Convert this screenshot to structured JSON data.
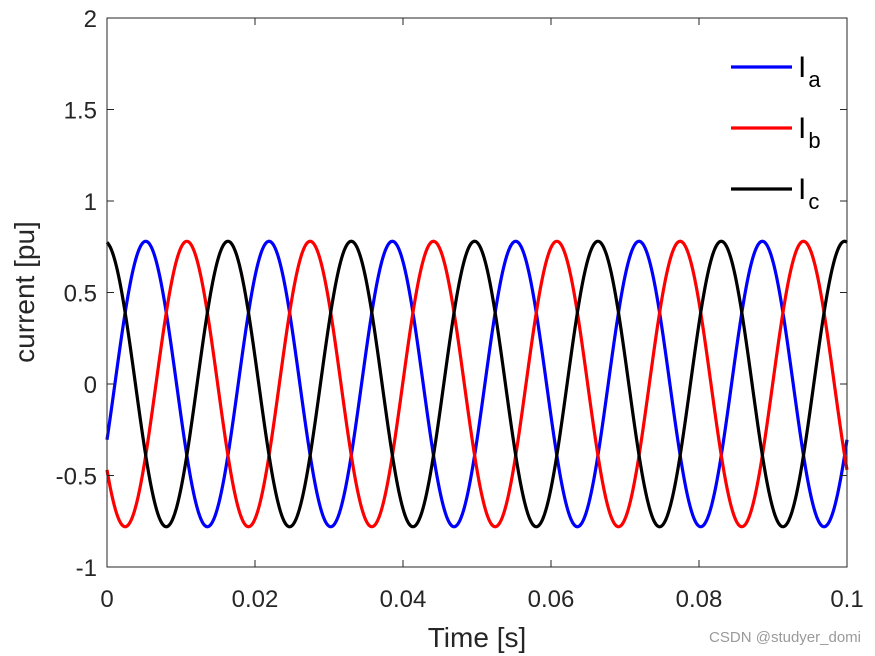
{
  "chart_data": {
    "type": "line",
    "title": "",
    "xlabel": "Time [s]",
    "ylabel": "current [pu]",
    "xlim": [
      0,
      0.1
    ],
    "ylim": [
      -1,
      2
    ],
    "xticks": [
      0,
      0.02,
      0.04,
      0.06,
      0.08,
      0.1
    ],
    "xtick_labels": [
      "0",
      "0.02",
      "0.04",
      "0.06",
      "0.08",
      "0.1"
    ],
    "yticks": [
      -1,
      -0.5,
      0,
      0.5,
      1,
      1.5,
      2
    ],
    "ytick_labels": [
      "-1",
      "-0.5",
      "0",
      "0.5",
      "1",
      "1.5",
      "2"
    ],
    "grid": false,
    "legend_position": "top-right",
    "frequency_hz": 60,
    "series": [
      {
        "name": "I",
        "subscript": "a",
        "color": "#0000ff",
        "amplitude": 0.78,
        "phase_deg": -23
      },
      {
        "name": "I",
        "subscript": "b",
        "color": "#ff0000",
        "amplitude": 0.78,
        "phase_deg": -143
      },
      {
        "name": "I",
        "subscript": "c",
        "color": "#000000",
        "amplitude": 0.78,
        "phase_deg": 97
      }
    ]
  },
  "watermark": "CSDN @studyer_domi"
}
